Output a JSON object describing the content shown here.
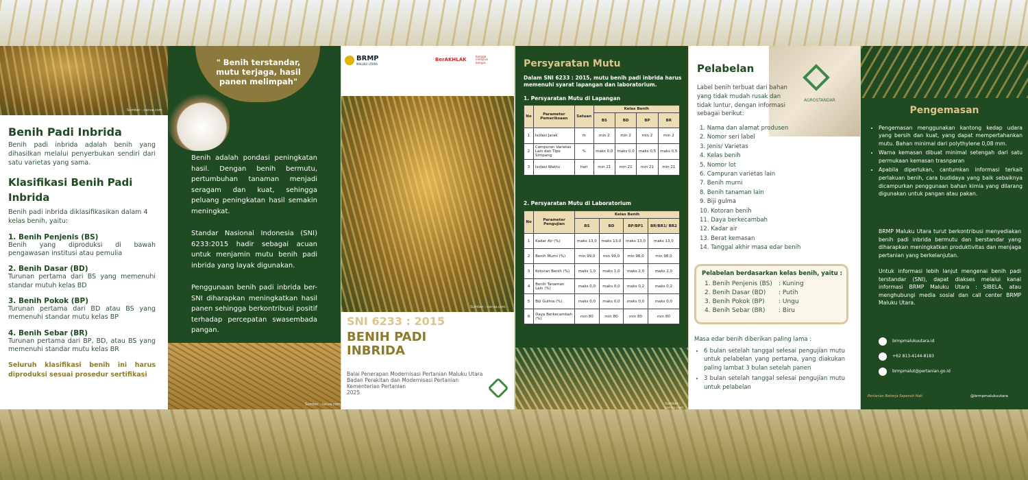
{
  "panel1": {
    "image_credit": "Sumber : canva.com",
    "title": "Benih Padi Inbrida",
    "intro": "Benih padi inbrida adalah benih yang dihasilkan melalui penyerbukan sendiri dari satu varietas yang sama.",
    "heading": "Klasifikasi Benih Padi Inbrida",
    "lead": "Benih padi inbrida diklasifikasikan dalam 4 kelas benih, yaitu:",
    "classes": [
      {
        "name": "1. Benih Penjenis (BS)",
        "desc": "Benih yang diproduksi di bawah pengawasan institusi atau pemulia"
      },
      {
        "name": "2. Benih Dasar (BD)",
        "desc": "Turunan pertama dari BS yang memenuhi standar mutuh kelas BD"
      },
      {
        "name": "3. Benih Pokok (BP)",
        "desc": "Turunan pertama dari BD atau BS yang memenuhi standar mutu kelas BP"
      },
      {
        "name": "4. Benih Sebar (BR)",
        "desc": "Turunan pertama dari BP, BD, atau BS yang memenuhi standar mutu kelas BR"
      }
    ],
    "closing": "Seluruh klasifikasi benih ini harus diproduksi sesuai prosedur sertifikasi"
  },
  "panel2": {
    "quote": "\" Benih terstandar, mutu terjaga, hasil panen melimpah\"",
    "paragraphs": [
      "Benih adalah pondasi peningkatan hasil. Dengan benih bermutu, pertumbuhan tanaman menjadi seragam dan kuat, sehingga peluang peningkatan hasil semakin meningkat.",
      "Standar Nasional Indonesia (SNI) 6233:2015 hadir sebagai acuan untuk menjamin mutu benih padi inbrida yang layak digunakan.",
      "Penggunaan benih padi inbrida ber-SNI diharapkan meningkatkan hasil panen sehingga berkontribusi positif terhadap percepatan swasembada pangan."
    ],
    "image_credit": "Sumber : canva.com"
  },
  "panel3": {
    "logo": "BRMP",
    "logo_sub": "MALUKU UTARA",
    "logo2": "BerAKHLAK",
    "logo3": "bangga melayani bangsa",
    "image_credit": "Sumber : canva.com",
    "sni": "SNI 6233 : 2015",
    "title": "BENIH PADI INBRIDA",
    "agency": [
      "Balai Penerapan Modernisasi Pertanian Maluku Utara",
      "Badan Perakitan dan Modernisasi Pertanian",
      "Kementerian Pertanian",
      "2025"
    ]
  },
  "panel4": {
    "title": "Persyaratan Mutu",
    "intro": "Dalam SNI 6233 : 2015, mutu benih padi inbrida harus memenuhi syarat lapangan dan laboratorium.",
    "field": {
      "heading": "1. Persyaratan Mutu di Lapangan",
      "headers": [
        "No",
        "Parameter Pemeriksaan",
        "Satuan",
        "Kelas Benih"
      ],
      "classes": [
        "BS",
        "BD",
        "BP",
        "BR"
      ],
      "rows": [
        [
          "1",
          "Isolasi Jarak",
          "m",
          "min 2",
          "min 2",
          "min 2",
          "min 2"
        ],
        [
          "2",
          "Campuran Varietas Lain dan Tipe Simpang",
          "%",
          "maks 0,0",
          "maks 0,0",
          "maks 0,5",
          "maks 0,5"
        ],
        [
          "3",
          "Isolasi Waktu",
          "hari",
          "min 21",
          "min 21",
          "min 21",
          "min 21"
        ]
      ]
    },
    "lab": {
      "heading": "2. Persyaratan Mutu di Laboratorium",
      "headers": [
        "No",
        "Parameter Pengujian",
        "Kelas Benih"
      ],
      "classes": [
        "BS",
        "BD",
        "BP/BP1",
        "BR/BR1/ BR2"
      ],
      "rows": [
        [
          "1",
          "Kadar Air (%)",
          "maks 13,0",
          "maks 13,0",
          "maks 13,0",
          "maks 13,0"
        ],
        [
          "2",
          "Benih Murni (%)",
          "min 99,0",
          "min 99,0",
          "min 98,0",
          "min 98,0"
        ],
        [
          "3",
          "Kotoran Benih (%)",
          "maks 1,0",
          "maks 1,0",
          "maks 2,0",
          "maks 2,0"
        ],
        [
          "4",
          "Benih Tanaman Lain (%)",
          "maks 0,0",
          "maks 0,0",
          "maks 0,2",
          "maks 0,2"
        ],
        [
          "5",
          "Biji Gulma (%)",
          "maks 0,0",
          "maks 0,0",
          "maks 0,0",
          "maks 0,0"
        ],
        [
          "6",
          "Daya Berkecambah (%)",
          "min 80",
          "min 80",
          "min 80",
          "min 80"
        ]
      ]
    },
    "image_credit": "Sumber : canva.com"
  },
  "panel5": {
    "title": "Pelabelan",
    "bag_label": "AGROSTANDAR",
    "intro": "Label benih terbuat dari bahan yang tidak mudah rusak dan tidak luntur, dengan informasi sebagai berikut:",
    "items": [
      "1. Nama dan alamat produsen",
      "2. Nomor seri label",
      "3. Jenis/ Varietas",
      "4. Kelas benih",
      "5. Nomor lot",
      "6. Campuran varietas lain",
      "7. Benih murni",
      "8. Benih tanaman lain",
      "9. Biji gulma",
      "10. Kotoran benih",
      "11. Daya berkecambah",
      "12. Kadar air",
      "13. Berat kemasan",
      "14. Tanggal akhir masa edar benih"
    ],
    "box_heading": "Pelabelan berdasarkan kelas benih, yaitu :",
    "box_rows": [
      [
        "1. Benih Penjenis (BS)",
        ": Kuning"
      ],
      [
        "2. Benih Dasar (BD)",
        ": Putih"
      ],
      [
        "3. Benih Pokok (BP)",
        ": Ungu"
      ],
      [
        "4. Benih Sebar (BR)",
        ": Biru"
      ]
    ],
    "expiry_heading": "Masa edar benih diberikan paling lama :",
    "expiry": [
      "6 bulan setelah tanggal selesai pengujian mutu untuk pelabelan yang pertama, yang diakukan paling lambat 3 bulan setelah panen",
      "3 bulan setelah tanggal selesai pengujian mutu untuk pelabelan"
    ]
  },
  "panel6": {
    "title": "Pengemasan",
    "bullets": [
      "Pengemasan menggunakan kantong kedap udara yang bersih dan kuat, yang dapat mempertahankan mutu. Bahan minimal dari polythylene 0,08 mm.",
      "Warna kemasan dibuat minimal setengah dari satu permukaan kemasan trasnparan",
      "Apabila diperlukan, cantumkan informasi terkait perlakuan benih, cara budidaya yang baik sebaiknya dicampurkan penggunaan bahan kimia yang dilarang digunakan untuk pangan atau pakan."
    ],
    "paragraphs": [
      "BRMP Maluku Utara turut berkontribusi menyediakan benih padi inbrida bermutu dan berstandar yang diharapkan meningkatkan produktivitas dan menjaga pertanian yang berkelanjutan.",
      "Untuk informasi lebih lanjut mengenai benih padi terstandar (SNI), dapat diakses melalui kanal informasi BRMP Maluku Utara : SIBELA, atau menghubungi media sosial dan call center BRMP Maluku Utara."
    ],
    "contacts": [
      "brmpmalukuutara.id",
      "+62 813-4144-8183",
      "brmpmalut@pertanian.go.id"
    ],
    "footer": "Pertanian Bekerja Sepenuh Hati",
    "social": "@brmpmalukuutara"
  }
}
